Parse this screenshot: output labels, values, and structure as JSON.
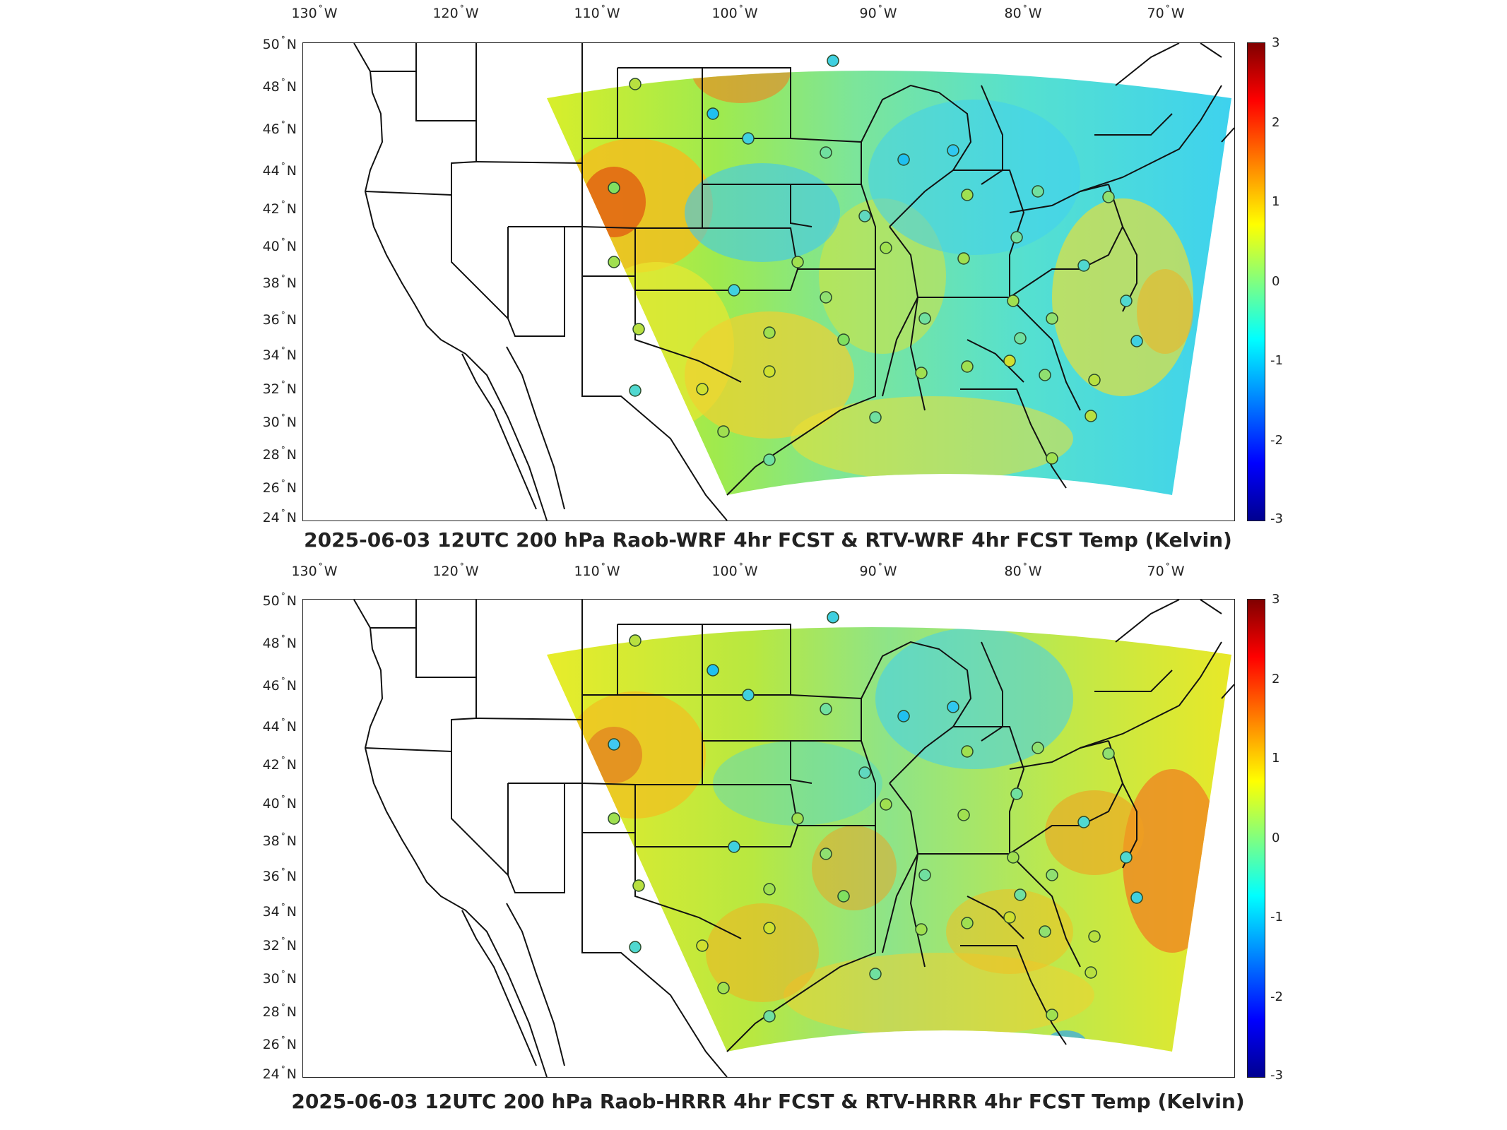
{
  "panels": [
    {
      "title": "2025-06-03 12UTC 200 hPa Raob-WRF 4hr FCST & RTV-WRF 4hr FCST Temp (Kelvin)",
      "lon_labels": [
        "130",
        "120",
        "110",
        "100",
        "90",
        "80",
        "70"
      ],
      "lon_suffix": "W",
      "lat_labels": [
        "50",
        "48",
        "46",
        "44",
        "42",
        "40",
        "38",
        "36",
        "34",
        "32",
        "30",
        "28",
        "26",
        "24"
      ],
      "lat_suffix": "N",
      "colorbar_ticks": [
        "3",
        "2",
        "1",
        "0",
        "-1",
        "-2",
        "-3"
      ]
    },
    {
      "title": "2025-06-03 12UTC 200 hPa Raob-HRRR 4hr FCST & RTV-HRRR 4hr FCST Temp (Kelvin)",
      "lon_labels": [
        "130",
        "120",
        "110",
        "100",
        "90",
        "80",
        "70"
      ],
      "lon_suffix": "W",
      "lat_labels": [
        "50",
        "48",
        "46",
        "44",
        "42",
        "40",
        "38",
        "36",
        "34",
        "32",
        "30",
        "28",
        "26",
        "24"
      ],
      "lat_suffix": "N",
      "colorbar_ticks": [
        "3",
        "2",
        "1",
        "0",
        "-1",
        "-2",
        "-3"
      ]
    }
  ],
  "colorbar": {
    "min": -3,
    "max": 3,
    "colormap": "jet",
    "units": "Kelvin"
  },
  "colors": {
    "background": "#ffffff",
    "border": "#222222",
    "station_outline": "#2a4a2a"
  }
}
